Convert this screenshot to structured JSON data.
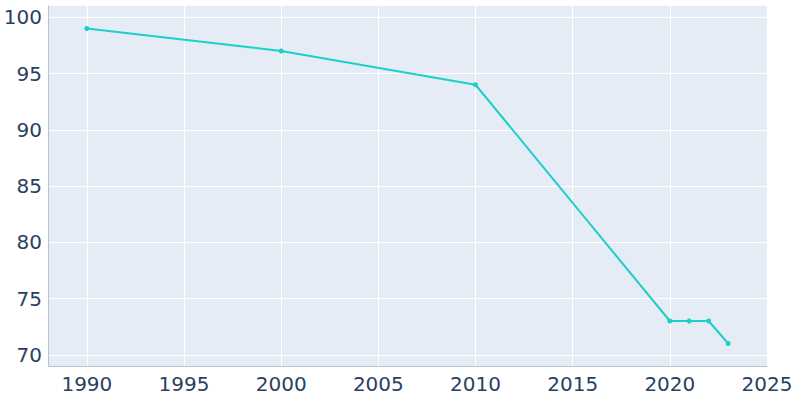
{
  "chart_data": {
    "type": "line",
    "x": [
      1990,
      2000,
      2010,
      2020,
      2021,
      2022,
      2023
    ],
    "values": [
      99,
      97,
      94,
      73,
      73,
      73,
      71
    ],
    "color": "#1ccfc9",
    "marker": "circle",
    "xlim": [
      1988,
      2025
    ],
    "xticks": [
      1990,
      1995,
      2000,
      2005,
      2010,
      2015,
      2020,
      2025
    ],
    "ylim": [
      69,
      101
    ],
    "yticks": [
      70,
      75,
      80,
      85,
      90,
      95,
      100
    ],
    "grid": true
  }
}
